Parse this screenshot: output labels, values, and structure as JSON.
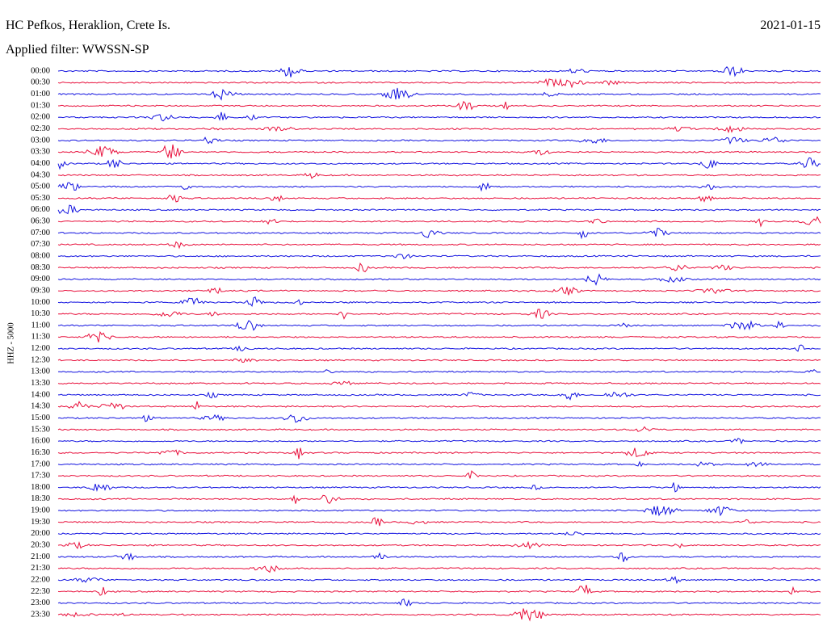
{
  "header": {
    "station": "HC Pefkos, Heraklion, Crete Is.",
    "date": "2021-01-15",
    "filter": "Applied filter: WWSSN-SP"
  },
  "axis_label": "HHZ - 5000",
  "rows": [
    "00:00",
    "00:30",
    "01:00",
    "01:30",
    "02:00",
    "02:30",
    "03:00",
    "03:30",
    "04:00",
    "04:30",
    "05:00",
    "05:30",
    "06:00",
    "06:30",
    "07:00",
    "07:30",
    "08:00",
    "08:30",
    "09:00",
    "09:30",
    "10:00",
    "10:30",
    "11:00",
    "11:30",
    "12:00",
    "12:30",
    "13:00",
    "13:30",
    "14:00",
    "14:30",
    "15:00",
    "15:30",
    "16:00",
    "16:30",
    "17:00",
    "17:30",
    "18:00",
    "18:30",
    "19:00",
    "19:30",
    "20:00",
    "20:30",
    "21:00",
    "21:30",
    "22:00",
    "22:30",
    "23:00",
    "23:30"
  ]
}
